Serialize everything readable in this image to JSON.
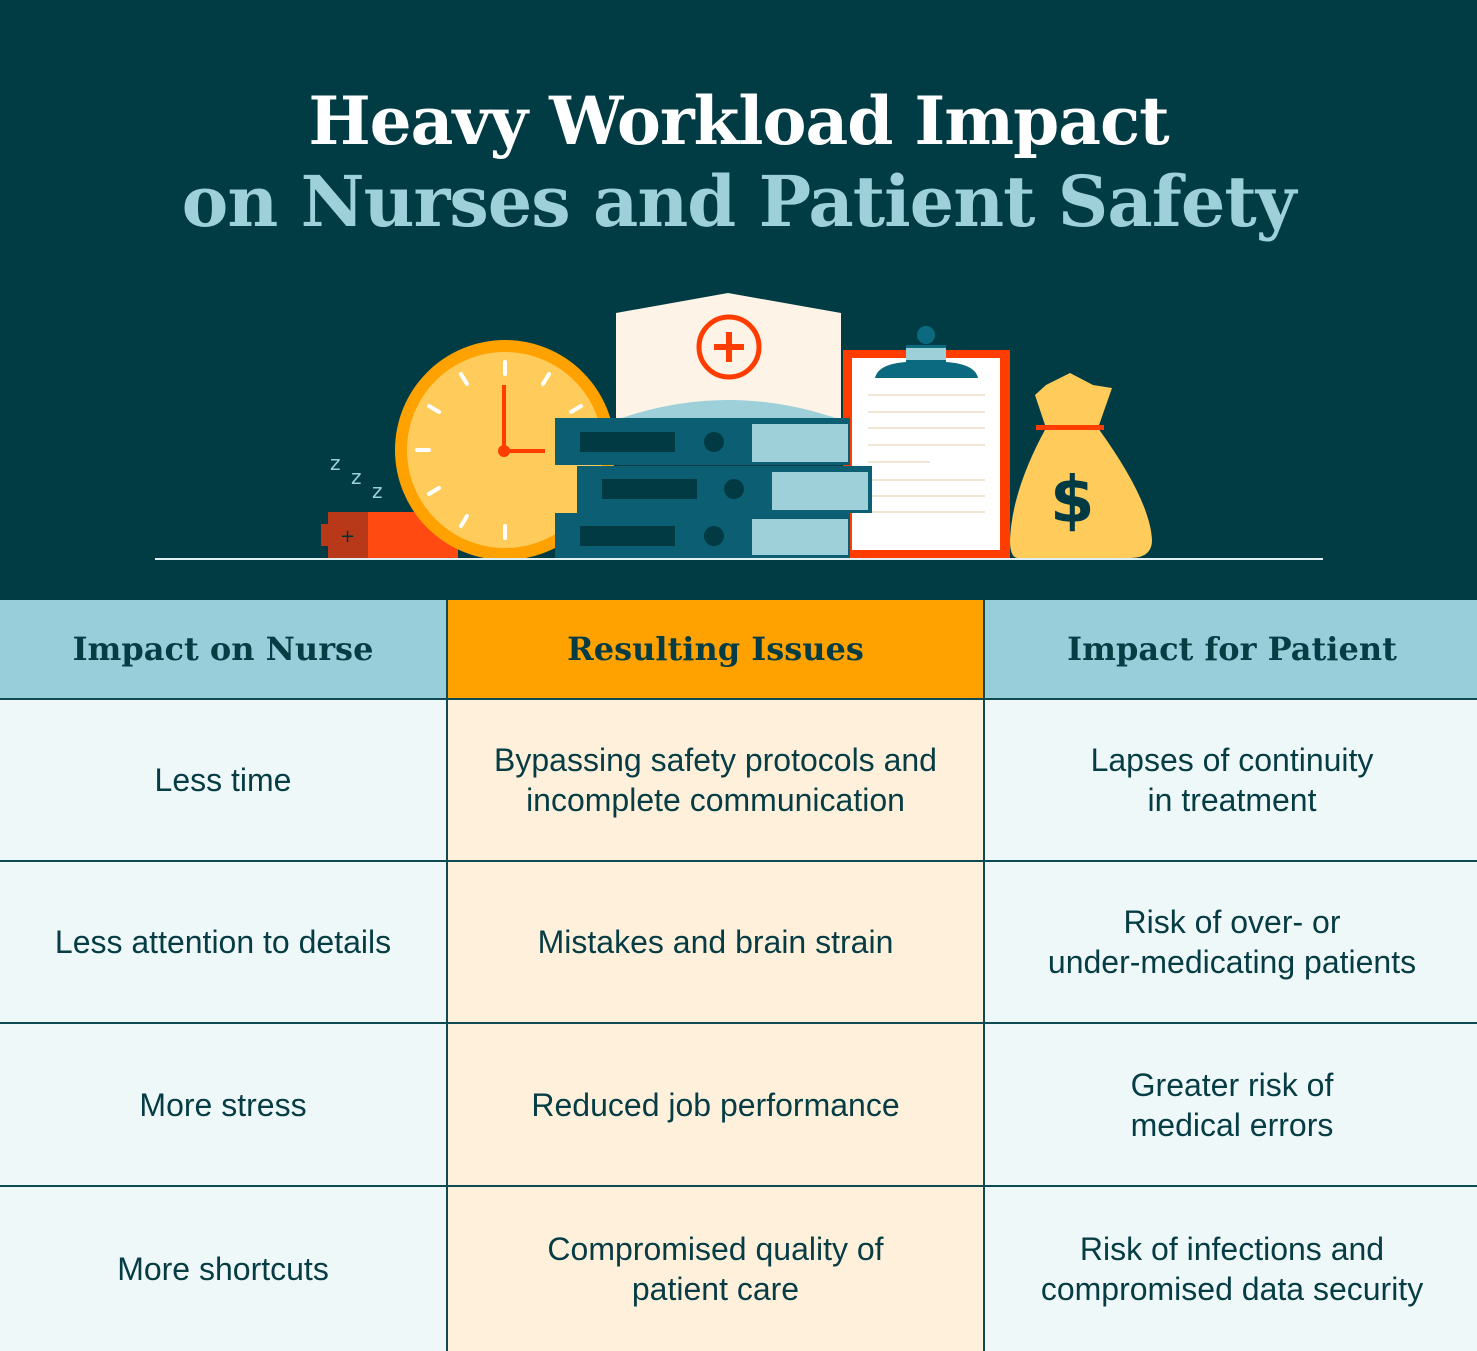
{
  "title": {
    "line1": "Heavy Workload Impact",
    "line2": "on Nurses and Patient Safety"
  },
  "illustration": {
    "icons": [
      "sleep-z-icon",
      "battery-icon",
      "clock-icon",
      "nurse-cap-icon",
      "binders-icon",
      "clipboard-icon",
      "money-bag-icon"
    ],
    "money_symbol": "$",
    "sleep_text": "Z Z Z"
  },
  "colors": {
    "background": "#013b44",
    "title_accent": "#9dd0d8",
    "header_teal": "#98ceda",
    "header_orange": "#ffa200",
    "cell_light": "#eff8f9",
    "cell_cream": "#fff0dc",
    "text": "#063c44"
  },
  "table": {
    "headers": [
      "Impact on Nurse",
      "Resulting Issues",
      "Impact for Patient"
    ],
    "rows": [
      [
        "Less time",
        "Bypassing safety protocols and\nincomplete communication",
        "Lapses of continuity\nin treatment"
      ],
      [
        "Less attention to details",
        "Mistakes and brain strain",
        "Risk of over- or\nunder-medicating patients"
      ],
      [
        "More stress",
        "Reduced job performance",
        "Greater risk of\nmedical errors"
      ],
      [
        "More shortcuts",
        "Compromised quality of\npatient care",
        "Risk of infections and\ncompromised data security"
      ]
    ]
  }
}
